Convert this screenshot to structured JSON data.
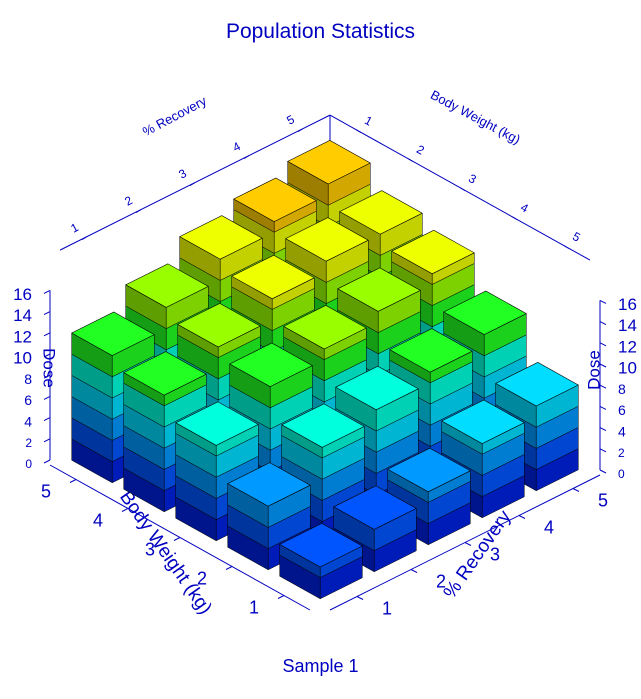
{
  "chart_data": {
    "type": "bar3d",
    "title": "Population Statistics",
    "caption": "Sample 1",
    "x_label": "% Recovery",
    "y_label": "Body Weight (kg)",
    "z_label": "Dose",
    "x_ticks": [
      "1",
      "2",
      "3",
      "4",
      "5"
    ],
    "y_ticks": [
      "1",
      "2",
      "3",
      "4",
      "5"
    ],
    "z_ticks": [
      "0",
      "2",
      "4",
      "6",
      "8",
      "10",
      "12",
      "14",
      "16"
    ],
    "z_range": [
      0,
      16
    ],
    "color_scale": "rainbow: blue (low) to red (high), one color band per 2 dose units",
    "rows": [
      {
        "body_weight": 1,
        "values": [
          3,
          4,
          5,
          7,
          8
        ]
      },
      {
        "body_weight": 2,
        "values": [
          6,
          9,
          10,
          11,
          12
        ]
      },
      {
        "body_weight": 3,
        "values": [
          9,
          12,
          13,
          14,
          15
        ]
      },
      {
        "body_weight": 4,
        "values": [
          11,
          13,
          15,
          16,
          16
        ]
      },
      {
        "body_weight": 5,
        "values": [
          12,
          14,
          16,
          17,
          18
        ]
      }
    ],
    "band_colors": [
      "#0022e0",
      "#0055ff",
      "#0099ff",
      "#00ddff",
      "#00ffdd",
      "#22ff22",
      "#99ff00",
      "#eeff00",
      "#ffcc00",
      "#ff6600",
      "#ff1100"
    ],
    "axis_color": "#0000c0",
    "grid": false
  }
}
